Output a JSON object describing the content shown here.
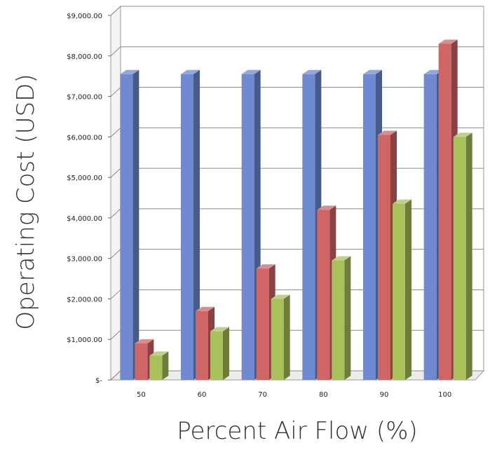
{
  "chart_data": {
    "type": "bar",
    "variant": "3d-clustered-column",
    "xlabel": "Percent Air Flow (%)",
    "ylabel": "Operating Cost (USD)",
    "categories": [
      "50",
      "60",
      "70",
      "80",
      "90",
      "100"
    ],
    "series": [
      {
        "color": "#6f8ad0",
        "values": [
          7550,
          7550,
          7550,
          7550,
          7550,
          7550
        ]
      },
      {
        "color": "#d06565",
        "values": [
          900,
          1700,
          2750,
          4200,
          6050,
          8300
        ]
      },
      {
        "color": "#a9c15b",
        "values": [
          600,
          1200,
          2000,
          2950,
          4350,
          6000
        ]
      }
    ],
    "yticks": [
      {
        "value": 0,
        "label": "$-"
      },
      {
        "value": 1000,
        "label": "$1,000.00"
      },
      {
        "value": 2000,
        "label": "$2,000.00"
      },
      {
        "value": 3000,
        "label": "$3,000.00"
      },
      {
        "value": 4000,
        "label": "$4,000.00"
      },
      {
        "value": 5000,
        "label": "$5,000.00"
      },
      {
        "value": 6000,
        "label": "$6,000.00"
      },
      {
        "value": 7000,
        "label": "$7,000.00"
      },
      {
        "value": 8000,
        "label": "$8,000.00"
      },
      {
        "value": 9000,
        "label": "$9,000.00"
      }
    ],
    "ylim": [
      0,
      9000
    ],
    "grid": true,
    "legend": "none"
  }
}
